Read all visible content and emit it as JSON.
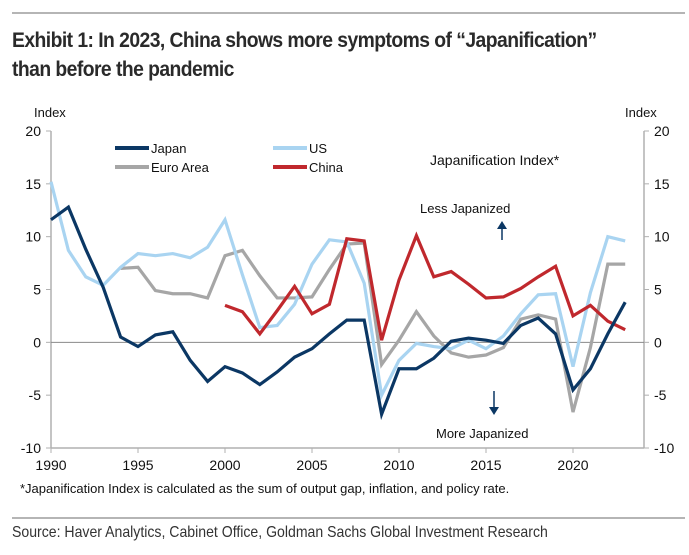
{
  "title": "Exhibit 1: In 2023, China shows more symptoms of “Japanification” than before the pandemic",
  "source": "Source: Haver Analytics, Cabinet Office, Goldman Sachs Global Investment Research",
  "chart_data": {
    "type": "line",
    "title": "Japanification Index*",
    "footnote": "*Japanification Index is calculated as the sum of output gap, inflation, and policy rate.",
    "ylabel_left": "Index",
    "ylabel_right": "Index",
    "xlabel": "",
    "ylim": [
      -10,
      20
    ],
    "xlim": [
      1990,
      2024
    ],
    "yticks": [
      20,
      15,
      10,
      5,
      0,
      -5,
      -10
    ],
    "xticks": [
      1990,
      1995,
      2000,
      2005,
      2010,
      2015,
      2020
    ],
    "grid": false,
    "legend_placement": "top-left",
    "annotations": {
      "up": "Less Japanized",
      "down": "More Japanized"
    },
    "series": [
      {
        "name": "Japan",
        "color": "#0b3764",
        "start": 1990,
        "values": [
          11.6,
          12.8,
          8.8,
          5.2,
          0.5,
          -0.4,
          0.7,
          1.0,
          -1.7,
          -3.7,
          -2.3,
          -2.9,
          -4.0,
          -2.8,
          -1.4,
          -0.6,
          0.8,
          2.1,
          2.1,
          -6.8,
          -2.5,
          -2.5,
          -1.5,
          0.1,
          0.4,
          0.2,
          -0.1,
          1.6,
          2.3,
          0.8,
          -4.5,
          -2.5,
          0.8,
          3.8
        ]
      },
      {
        "name": "US",
        "color": "#a9d4f1",
        "start": 1990,
        "values": [
          15.2,
          8.7,
          6.2,
          5.4,
          7.1,
          8.4,
          8.2,
          8.4,
          8.0,
          9.0,
          11.6,
          6.4,
          1.4,
          1.6,
          3.6,
          7.4,
          9.7,
          9.5,
          5.6,
          -5.0,
          -1.7,
          -0.1,
          -0.4,
          -0.6,
          0.2,
          -0.6,
          0.6,
          2.7,
          4.5,
          4.6,
          -2.3,
          4.7,
          10.0,
          9.6
        ]
      },
      {
        "name": "Euro Area",
        "color": "#a6a6a6",
        "start": 1994,
        "values": [
          7.0,
          7.1,
          4.9,
          4.6,
          4.6,
          4.2,
          8.2,
          8.7,
          6.3,
          4.2,
          4.2,
          4.3,
          6.9,
          9.3,
          9.4,
          -2.1,
          0.2,
          2.9,
          0.6,
          -1.0,
          -1.4,
          -1.2,
          -0.5,
          2.2,
          2.6,
          2.2,
          -6.6,
          -0.5,
          7.4,
          7.4
        ]
      },
      {
        "name": "China",
        "color": "#c0282d",
        "start": 2000,
        "values": [
          3.5,
          2.9,
          0.8,
          3.0,
          5.3,
          2.7,
          3.6,
          9.8,
          9.6,
          0.2,
          5.9,
          10.1,
          6.2,
          6.7,
          5.5,
          4.2,
          4.3,
          5.1,
          6.2,
          7.2,
          2.5,
          3.5,
          2.0,
          1.2
        ]
      }
    ]
  }
}
